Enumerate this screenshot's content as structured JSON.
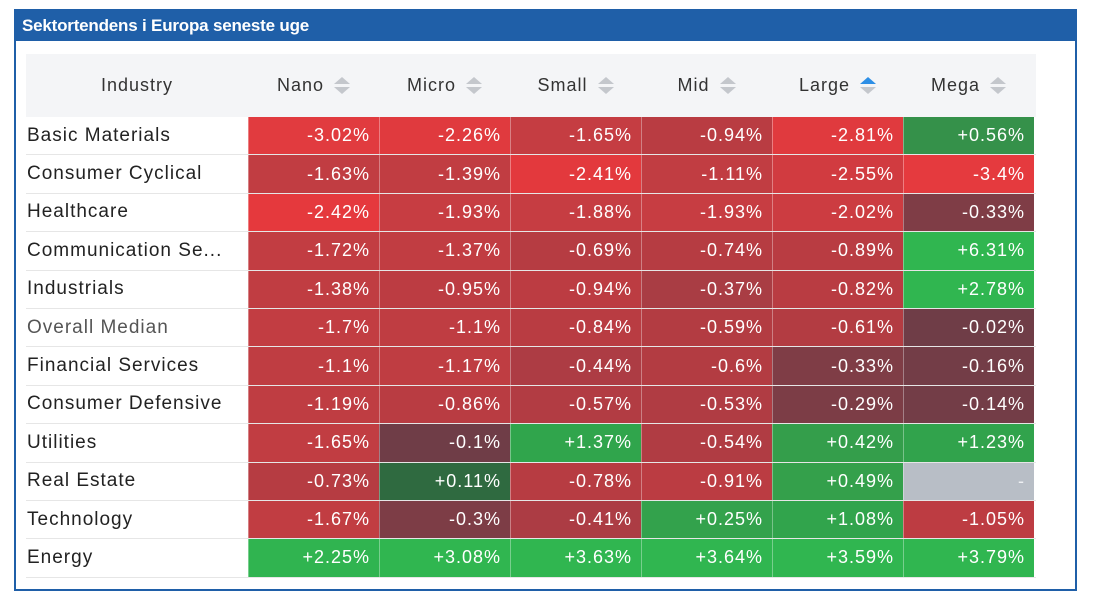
{
  "title": "Sektortendens i Europa seneste uge",
  "headers": {
    "industry": "Industry",
    "cols": [
      "Nano",
      "Micro",
      "Small",
      "Mid",
      "Large",
      "Mega"
    ],
    "active_sort": "Large"
  },
  "rows": [
    {
      "industry": "Basic Materials",
      "values": [
        "-3.02%",
        "-2.26%",
        "-1.65%",
        "-0.94%",
        "-2.81%",
        "+0.56%"
      ],
      "colors": [
        "#e13b3f",
        "#e03a3e",
        "#c53d42",
        "#b93c42",
        "#e03a3e",
        "#35914a"
      ]
    },
    {
      "industry": "Consumer Cyclical",
      "values": [
        "-1.63%",
        "-1.39%",
        "-2.41%",
        "-1.11%",
        "-2.55%",
        "-3.4%"
      ],
      "colors": [
        "#c13d42",
        "#c13d42",
        "#e3393d",
        "#c13d42",
        "#d13b40",
        "#e53a3e"
      ]
    },
    {
      "industry": "Healthcare",
      "values": [
        "-2.42%",
        "-1.93%",
        "-1.88%",
        "-1.93%",
        "-2.02%",
        "-0.33%"
      ],
      "colors": [
        "#e5393d",
        "#c73d42",
        "#c63d42",
        "#c73d42",
        "#cc3c41",
        "#7f3d46"
      ]
    },
    {
      "industry": "Communication Se...",
      "values": [
        "-1.72%",
        "-1.37%",
        "-0.69%",
        "-0.74%",
        "-0.89%",
        "+6.31%"
      ],
      "colors": [
        "#c23d42",
        "#c13d42",
        "#b63c42",
        "#b63c42",
        "#b93c42",
        "#30b650"
      ]
    },
    {
      "industry": "Industrials",
      "values": [
        "-1.38%",
        "-0.95%",
        "-0.94%",
        "-0.37%",
        "-0.82%",
        "+2.78%"
      ],
      "colors": [
        "#c03d42",
        "#bc3c42",
        "#bc3c42",
        "#a93d44",
        "#b93c42",
        "#30b650"
      ]
    },
    {
      "industry": "Overall Median",
      "values": [
        "-1.7%",
        "-1.1%",
        "-0.84%",
        "-0.59%",
        "-0.61%",
        "-0.02%"
      ],
      "colors": [
        "#c23d42",
        "#bf3d42",
        "#b93c42",
        "#b33c42",
        "#b33c42",
        "#6f3d47"
      ]
    },
    {
      "industry": "Financial Services",
      "values": [
        "-1.1%",
        "-1.17%",
        "-0.44%",
        "-0.6%",
        "-0.33%",
        "-0.16%"
      ],
      "colors": [
        "#bf3d42",
        "#bf3d42",
        "#ad3c44",
        "#b33c42",
        "#7f3d46",
        "#733d47"
      ]
    },
    {
      "industry": "Consumer Defensive",
      "values": [
        "-1.19%",
        "-0.86%",
        "-0.57%",
        "-0.53%",
        "-0.29%",
        "-0.14%"
      ],
      "colors": [
        "#bf3d42",
        "#b93c42",
        "#b23c43",
        "#b03c43",
        "#7c3d46",
        "#733d47"
      ]
    },
    {
      "industry": "Utilities",
      "values": [
        "-1.65%",
        "-0.1%",
        "+1.37%",
        "-0.54%",
        "+0.42%",
        "+1.23%"
      ],
      "colors": [
        "#c13d42",
        "#6f3d47",
        "#30a54c",
        "#b03c43",
        "#349e4b",
        "#31a34c"
      ]
    },
    {
      "industry": "Real Estate",
      "values": [
        "-0.73%",
        "+0.11%",
        "-0.78%",
        "-0.91%",
        "+0.49%",
        "-"
      ],
      "colors": [
        "#b63c42",
        "#2f6a40",
        "#b73c42",
        "#bb3c42",
        "#34a04b",
        "#b8bec6"
      ]
    },
    {
      "industry": "Technology",
      "values": [
        "-1.67%",
        "-0.3%",
        "-0.41%",
        "+0.25%",
        "+1.08%",
        "-1.05%"
      ],
      "colors": [
        "#c13d42",
        "#7d3d46",
        "#ac3c44",
        "#33a24c",
        "#31a44c",
        "#bd3c42"
      ]
    },
    {
      "industry": "Energy",
      "values": [
        "+2.25%",
        "+3.08%",
        "+3.63%",
        "+3.64%",
        "+3.59%",
        "+3.79%"
      ],
      "colors": [
        "#30b450",
        "#30b650",
        "#30b650",
        "#30b650",
        "#30b650",
        "#30b650"
      ]
    }
  ]
}
